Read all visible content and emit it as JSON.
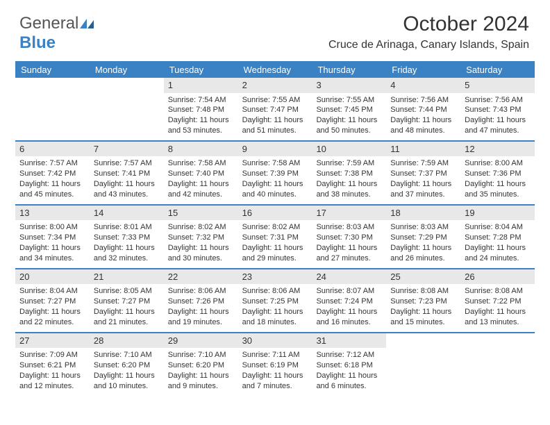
{
  "logo": {
    "text_gray": "General",
    "text_blue": "Blue"
  },
  "header": {
    "month_title": "October 2024",
    "location": "Cruce de Arinaga, Canary Islands, Spain"
  },
  "colors": {
    "header_bg": "#3b82c4",
    "header_text": "#ffffff",
    "daynum_bg": "#e8e8e8",
    "rule": "#3b82c4",
    "text": "#333333",
    "logo_gray": "#555555",
    "logo_blue": "#3b82c4",
    "background": "#ffffff"
  },
  "typography": {
    "title_fontsize": 30,
    "location_fontsize": 16,
    "dayhead_fontsize": 13,
    "daynum_fontsize": 13,
    "cell_fontsize": 11,
    "font_family": "Arial"
  },
  "day_names": [
    "Sunday",
    "Monday",
    "Tuesday",
    "Wednesday",
    "Thursday",
    "Friday",
    "Saturday"
  ],
  "weeks": [
    [
      {
        "empty": true
      },
      {
        "empty": true
      },
      {
        "day": "1",
        "sunrise": "Sunrise: 7:54 AM",
        "sunset": "Sunset: 7:48 PM",
        "daylight": "Daylight: 11 hours and 53 minutes."
      },
      {
        "day": "2",
        "sunrise": "Sunrise: 7:55 AM",
        "sunset": "Sunset: 7:47 PM",
        "daylight": "Daylight: 11 hours and 51 minutes."
      },
      {
        "day": "3",
        "sunrise": "Sunrise: 7:55 AM",
        "sunset": "Sunset: 7:45 PM",
        "daylight": "Daylight: 11 hours and 50 minutes."
      },
      {
        "day": "4",
        "sunrise": "Sunrise: 7:56 AM",
        "sunset": "Sunset: 7:44 PM",
        "daylight": "Daylight: 11 hours and 48 minutes."
      },
      {
        "day": "5",
        "sunrise": "Sunrise: 7:56 AM",
        "sunset": "Sunset: 7:43 PM",
        "daylight": "Daylight: 11 hours and 47 minutes."
      }
    ],
    [
      {
        "day": "6",
        "sunrise": "Sunrise: 7:57 AM",
        "sunset": "Sunset: 7:42 PM",
        "daylight": "Daylight: 11 hours and 45 minutes."
      },
      {
        "day": "7",
        "sunrise": "Sunrise: 7:57 AM",
        "sunset": "Sunset: 7:41 PM",
        "daylight": "Daylight: 11 hours and 43 minutes."
      },
      {
        "day": "8",
        "sunrise": "Sunrise: 7:58 AM",
        "sunset": "Sunset: 7:40 PM",
        "daylight": "Daylight: 11 hours and 42 minutes."
      },
      {
        "day": "9",
        "sunrise": "Sunrise: 7:58 AM",
        "sunset": "Sunset: 7:39 PM",
        "daylight": "Daylight: 11 hours and 40 minutes."
      },
      {
        "day": "10",
        "sunrise": "Sunrise: 7:59 AM",
        "sunset": "Sunset: 7:38 PM",
        "daylight": "Daylight: 11 hours and 38 minutes."
      },
      {
        "day": "11",
        "sunrise": "Sunrise: 7:59 AM",
        "sunset": "Sunset: 7:37 PM",
        "daylight": "Daylight: 11 hours and 37 minutes."
      },
      {
        "day": "12",
        "sunrise": "Sunrise: 8:00 AM",
        "sunset": "Sunset: 7:36 PM",
        "daylight": "Daylight: 11 hours and 35 minutes."
      }
    ],
    [
      {
        "day": "13",
        "sunrise": "Sunrise: 8:00 AM",
        "sunset": "Sunset: 7:34 PM",
        "daylight": "Daylight: 11 hours and 34 minutes."
      },
      {
        "day": "14",
        "sunrise": "Sunrise: 8:01 AM",
        "sunset": "Sunset: 7:33 PM",
        "daylight": "Daylight: 11 hours and 32 minutes."
      },
      {
        "day": "15",
        "sunrise": "Sunrise: 8:02 AM",
        "sunset": "Sunset: 7:32 PM",
        "daylight": "Daylight: 11 hours and 30 minutes."
      },
      {
        "day": "16",
        "sunrise": "Sunrise: 8:02 AM",
        "sunset": "Sunset: 7:31 PM",
        "daylight": "Daylight: 11 hours and 29 minutes."
      },
      {
        "day": "17",
        "sunrise": "Sunrise: 8:03 AM",
        "sunset": "Sunset: 7:30 PM",
        "daylight": "Daylight: 11 hours and 27 minutes."
      },
      {
        "day": "18",
        "sunrise": "Sunrise: 8:03 AM",
        "sunset": "Sunset: 7:29 PM",
        "daylight": "Daylight: 11 hours and 26 minutes."
      },
      {
        "day": "19",
        "sunrise": "Sunrise: 8:04 AM",
        "sunset": "Sunset: 7:28 PM",
        "daylight": "Daylight: 11 hours and 24 minutes."
      }
    ],
    [
      {
        "day": "20",
        "sunrise": "Sunrise: 8:04 AM",
        "sunset": "Sunset: 7:27 PM",
        "daylight": "Daylight: 11 hours and 22 minutes."
      },
      {
        "day": "21",
        "sunrise": "Sunrise: 8:05 AM",
        "sunset": "Sunset: 7:27 PM",
        "daylight": "Daylight: 11 hours and 21 minutes."
      },
      {
        "day": "22",
        "sunrise": "Sunrise: 8:06 AM",
        "sunset": "Sunset: 7:26 PM",
        "daylight": "Daylight: 11 hours and 19 minutes."
      },
      {
        "day": "23",
        "sunrise": "Sunrise: 8:06 AM",
        "sunset": "Sunset: 7:25 PM",
        "daylight": "Daylight: 11 hours and 18 minutes."
      },
      {
        "day": "24",
        "sunrise": "Sunrise: 8:07 AM",
        "sunset": "Sunset: 7:24 PM",
        "daylight": "Daylight: 11 hours and 16 minutes."
      },
      {
        "day": "25",
        "sunrise": "Sunrise: 8:08 AM",
        "sunset": "Sunset: 7:23 PM",
        "daylight": "Daylight: 11 hours and 15 minutes."
      },
      {
        "day": "26",
        "sunrise": "Sunrise: 8:08 AM",
        "sunset": "Sunset: 7:22 PM",
        "daylight": "Daylight: 11 hours and 13 minutes."
      }
    ],
    [
      {
        "day": "27",
        "sunrise": "Sunrise: 7:09 AM",
        "sunset": "Sunset: 6:21 PM",
        "daylight": "Daylight: 11 hours and 12 minutes."
      },
      {
        "day": "28",
        "sunrise": "Sunrise: 7:10 AM",
        "sunset": "Sunset: 6:20 PM",
        "daylight": "Daylight: 11 hours and 10 minutes."
      },
      {
        "day": "29",
        "sunrise": "Sunrise: 7:10 AM",
        "sunset": "Sunset: 6:20 PM",
        "daylight": "Daylight: 11 hours and 9 minutes."
      },
      {
        "day": "30",
        "sunrise": "Sunrise: 7:11 AM",
        "sunset": "Sunset: 6:19 PM",
        "daylight": "Daylight: 11 hours and 7 minutes."
      },
      {
        "day": "31",
        "sunrise": "Sunrise: 7:12 AM",
        "sunset": "Sunset: 6:18 PM",
        "daylight": "Daylight: 11 hours and 6 minutes."
      },
      {
        "empty": true
      },
      {
        "empty": true
      }
    ]
  ]
}
